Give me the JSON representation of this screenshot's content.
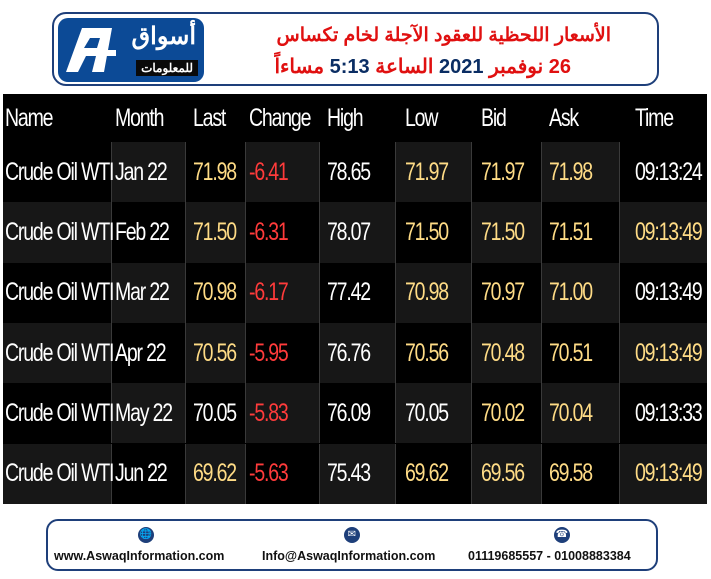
{
  "header": {
    "logo_ar": "أسواق",
    "logo_ar2": "للمعلومات",
    "title": "الأسعار اللحظية للعقود الآجلة لخام تكساس",
    "date_day": "26",
    "date_month": "نوفمبر",
    "date_year": "2021",
    "time_label": "الساعة",
    "time_value": "5:13",
    "period": "مساءاً"
  },
  "table": {
    "columns": [
      "Name",
      "Month",
      "Last",
      "Change",
      "High",
      "Low",
      "Bid",
      "Ask",
      "Time"
    ],
    "rows": [
      {
        "name": "Crude Oil WTI",
        "month": "Jan 22",
        "last": "71.98",
        "change": "-6.41",
        "high": "78.65",
        "low": "71.97",
        "bid": "71.97",
        "ask": "71.98",
        "time": "09:13:24"
      },
      {
        "name": "Crude Oil WTI",
        "month": "Feb 22",
        "last": "71.50",
        "change": "-6.31",
        "high": "78.07",
        "low": "71.50",
        "bid": "71.50",
        "ask": "71.51",
        "time": "09:13:49"
      },
      {
        "name": "Crude Oil WTI",
        "month": "Mar 22",
        "last": "70.98",
        "change": "-6.17",
        "high": "77.42",
        "low": "70.98",
        "bid": "70.97",
        "ask": "71.00",
        "time": "09:13:49"
      },
      {
        "name": "Crude Oil WTI",
        "month": "Apr 22",
        "last": "70.56",
        "change": "-5.95",
        "high": "76.76",
        "low": "70.56",
        "bid": "70.48",
        "ask": "70.51",
        "time": "09:13:49"
      },
      {
        "name": "Crude Oil WTI",
        "month": "May 22",
        "last": "70.05",
        "change": "-5.83",
        "high": "76.09",
        "low": "70.05",
        "bid": "70.02",
        "ask": "70.04",
        "time": "09:13:33"
      },
      {
        "name": "Crude Oil WTI",
        "month": "Jun 22",
        "last": "69.62",
        "change": "-5.63",
        "high": "75.43",
        "low": "69.62",
        "bid": "69.56",
        "ask": "69.58",
        "time": "09:13:49"
      }
    ],
    "colors": {
      "header": "#ffffff",
      "neutral": "#ffffff",
      "highlight": "#ffdc86",
      "negative": "#ff3b3b"
    }
  },
  "footer": {
    "website": "www.AswaqInformation.com",
    "email": "Info@AswaqInformation.com",
    "phones": "01119685557 - 01008883384",
    "icons": [
      "globe-icon",
      "mail-icon",
      "phone-icon"
    ]
  }
}
